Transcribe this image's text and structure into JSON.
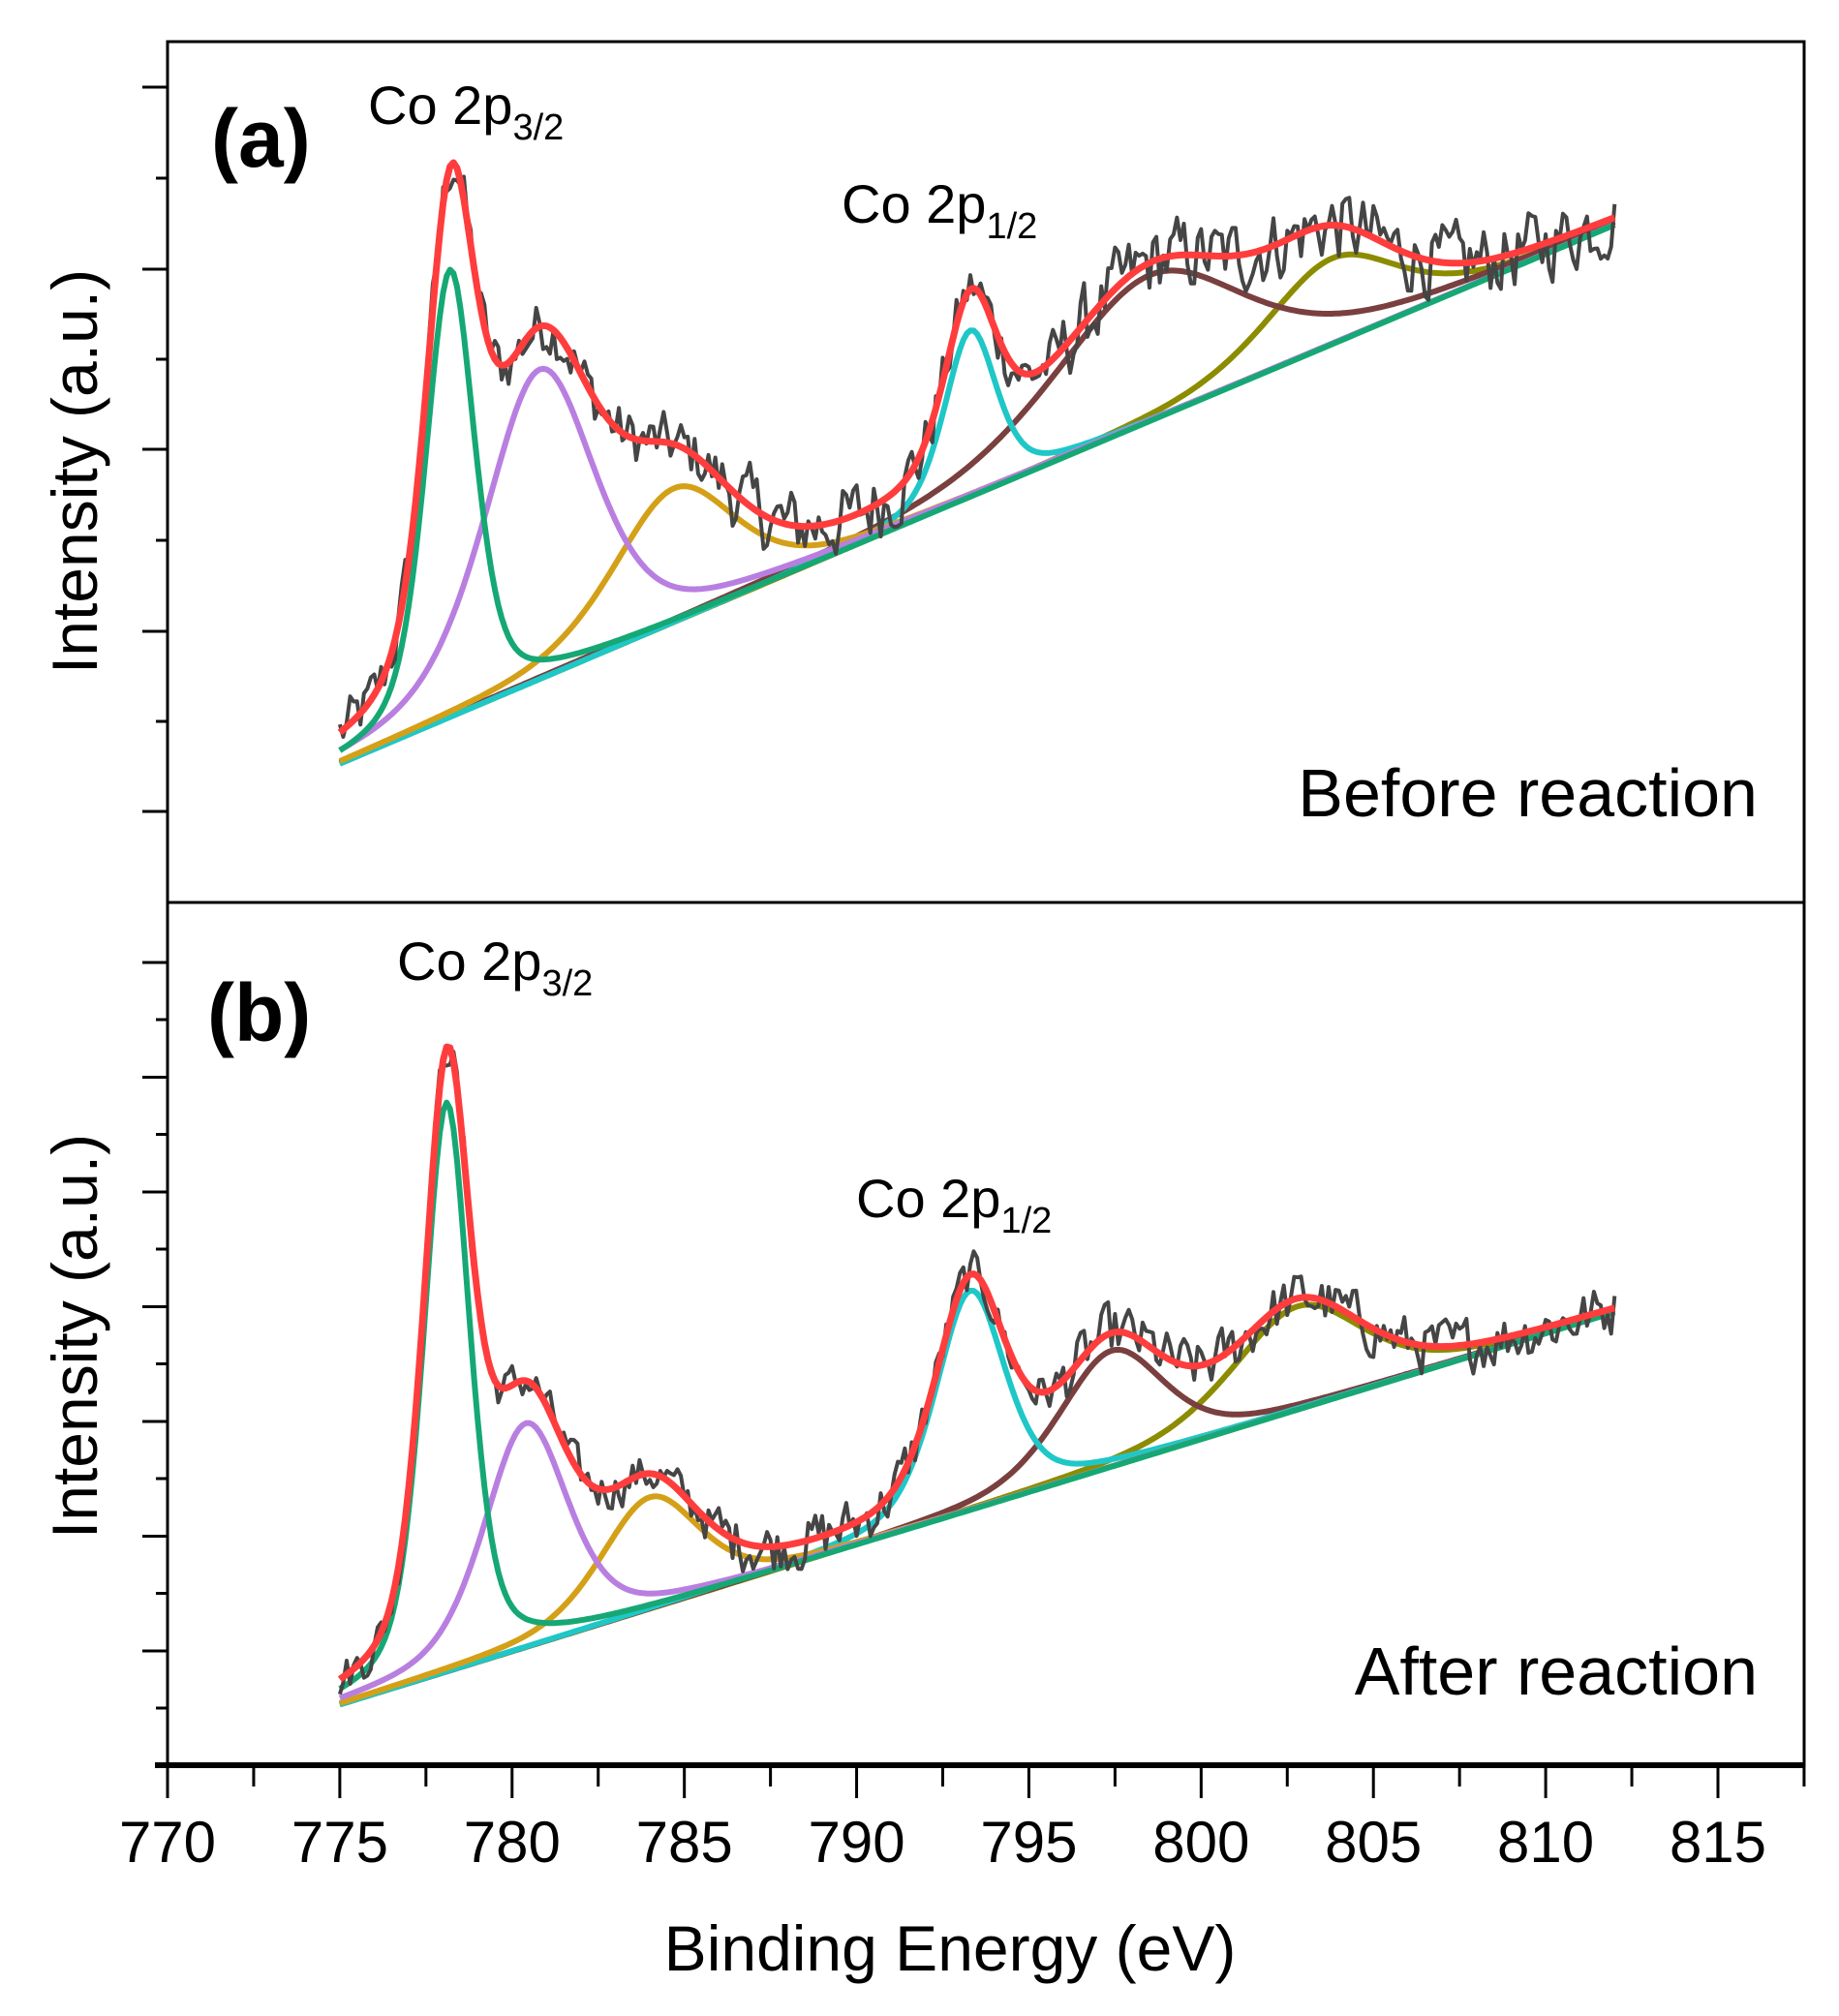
{
  "chart_data": {
    "type": "line",
    "xlabel": "Binding Energy (eV)",
    "ylabel": "Intensity (a.u.)",
    "xlim": [
      770,
      817.5
    ],
    "x_ticks": [
      770,
      775,
      780,
      785,
      790,
      795,
      800,
      805,
      810,
      815
    ],
    "x_tick_labels": [
      "770",
      "775",
      "780",
      "785",
      "790",
      "795",
      "800",
      "805",
      "810",
      "815"
    ],
    "fit_range": [
      775,
      812
    ],
    "colors": {
      "raw": "#454545",
      "envelope": "#ff3d3d",
      "baseline": "#3a6cc8",
      "p1": "#16a874",
      "p2": "#b97fe0",
      "p3": "#d4a017",
      "p4": "#1fc7c7",
      "p5": "#7a3f3f",
      "p6": "#8c8c00"
    },
    "panels": [
      {
        "label": "(a)",
        "condition": "Before reaction",
        "ylim": [
          0,
          100
        ],
        "annotations": [
          {
            "main": "Co 2p",
            "sub": "3/2"
          },
          {
            "main": "Co 2p",
            "sub": "1/2"
          }
        ],
        "baseline": {
          "start": [
            775,
            16.1
          ],
          "end": [
            812,
            78.7
          ]
        },
        "noise": 3.0,
        "peaks": [
          {
            "name": "p1",
            "center": 778.2,
            "height": 52,
            "fwhm": 1.7
          },
          {
            "name": "p2",
            "center": 780.8,
            "height": 36,
            "fwhm": 3.8
          },
          {
            "name": "p3",
            "center": 784.7,
            "height": 15.6,
            "fwhm": 4.2
          },
          {
            "name": "p4",
            "center": 793.3,
            "height": 19.4,
            "fwhm": 1.8
          },
          {
            "name": "p5",
            "center": 798.5,
            "height": 17,
            "fwhm": 6.5
          },
          {
            "name": "p6",
            "center": 803.8,
            "height": 10,
            "fwhm": 4.5
          }
        ]
      },
      {
        "label": "(b)",
        "condition": "After reaction",
        "ylim": [
          0,
          100
        ],
        "annotations": [
          {
            "main": "Co 2p",
            "sub": "3/2"
          },
          {
            "main": "Co 2p",
            "sub": "1/2"
          }
        ],
        "baseline": {
          "start": [
            775,
            7.0
          ],
          "end": [
            812,
            52.5
          ]
        },
        "noise": 2.2,
        "peaks": [
          {
            "name": "p1",
            "center": 778.1,
            "height": 66,
            "fwhm": 1.6
          },
          {
            "name": "p2",
            "center": 780.4,
            "height": 26,
            "fwhm": 2.9
          },
          {
            "name": "p3",
            "center": 784.0,
            "height": 13,
            "fwhm": 3.4
          },
          {
            "name": "p4",
            "center": 793.3,
            "height": 25.5,
            "fwhm": 2.4
          },
          {
            "name": "p5",
            "center": 797.4,
            "height": 13.5,
            "fwhm": 3.6
          },
          {
            "name": "p6",
            "center": 802.8,
            "height": 12,
            "fwhm": 4.5
          }
        ]
      }
    ]
  }
}
